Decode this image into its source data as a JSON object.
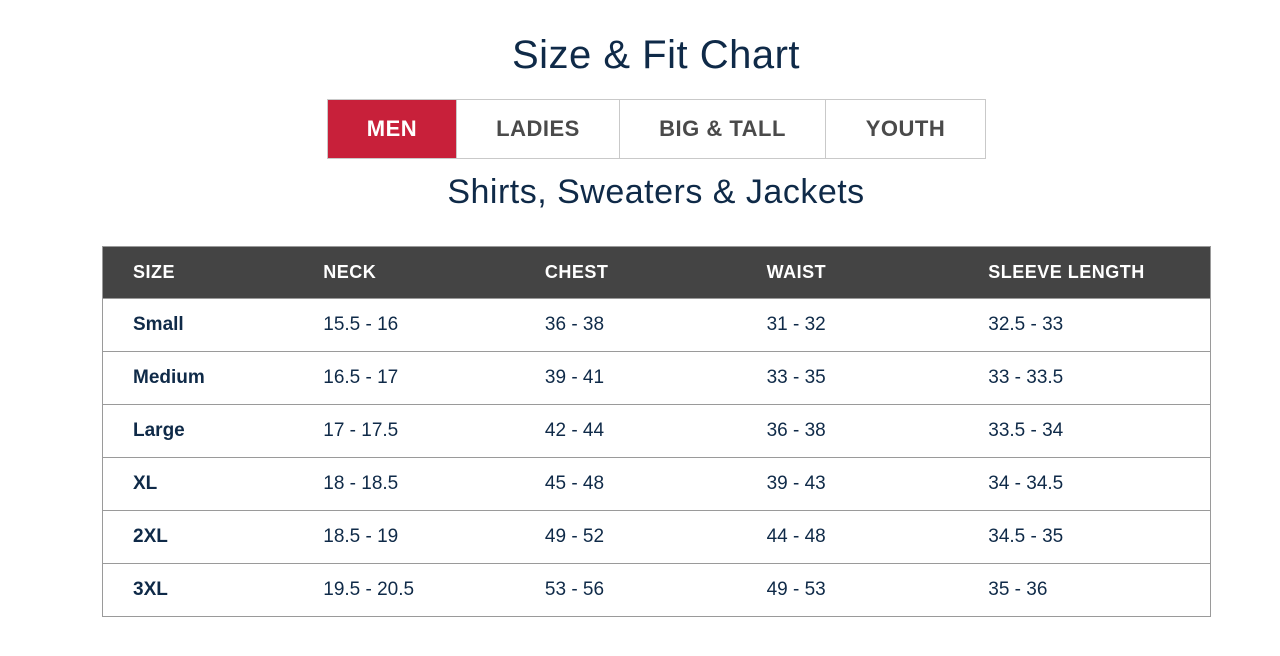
{
  "header": {
    "title": "Size & Fit Chart"
  },
  "tabs": [
    {
      "label": "MEN",
      "active": true
    },
    {
      "label": "LADIES",
      "active": false
    },
    {
      "label": "BIG & TALL",
      "active": false
    },
    {
      "label": "YOUTH",
      "active": false
    }
  ],
  "section": {
    "title": "Shirts, Sweaters & Jackets"
  },
  "table": {
    "columns": [
      "SIZE",
      "NECK",
      "CHEST",
      "WAIST",
      "SLEEVE LENGTH"
    ],
    "rows": [
      [
        "Small",
        "15.5 - 16",
        "36 - 38",
        "31 - 32",
        "32.5 - 33"
      ],
      [
        "Medium",
        "16.5 - 17",
        "39 - 41",
        "33 - 35",
        "33 - 33.5"
      ],
      [
        "Large",
        "17 - 17.5",
        "42 - 44",
        "36 - 38",
        "33.5 - 34"
      ],
      [
        "XL",
        "18 - 18.5",
        "45 - 48",
        "39 - 43",
        "34 - 34.5"
      ],
      [
        "2XL",
        "18.5 - 19",
        "49 - 52",
        "44 - 48",
        "34.5 - 35"
      ],
      [
        "3XL",
        "19.5 - 20.5",
        "53 - 56",
        "49 - 53",
        "35 - 36"
      ]
    ]
  },
  "colors": {
    "accent": "#c8203a",
    "header_bg": "#444444",
    "text": "#0f2a48"
  }
}
